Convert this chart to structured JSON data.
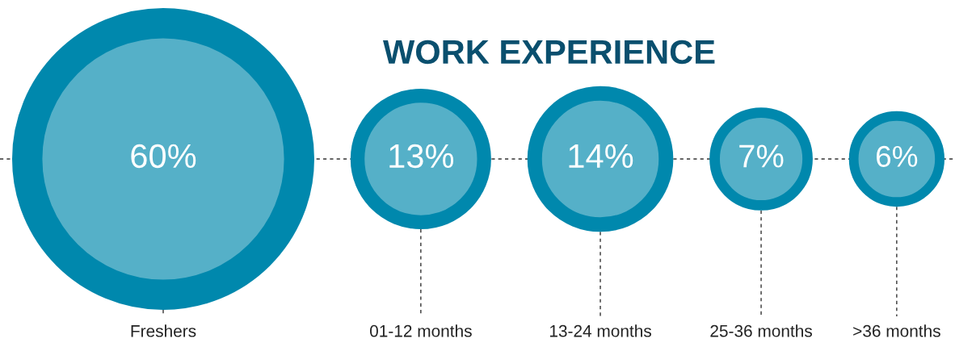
{
  "chart_data": {
    "type": "other",
    "title": "WORK EXPERIENCE",
    "categories": [
      "Freshers",
      "01-12 months",
      "13-24 months",
      "25-36 months",
      ">36 months"
    ],
    "values": [
      60,
      13,
      14,
      7,
      6
    ],
    "value_labels": [
      "60%",
      "13%",
      "14%",
      "7%",
      "6%"
    ],
    "color": "#0088ad"
  }
}
